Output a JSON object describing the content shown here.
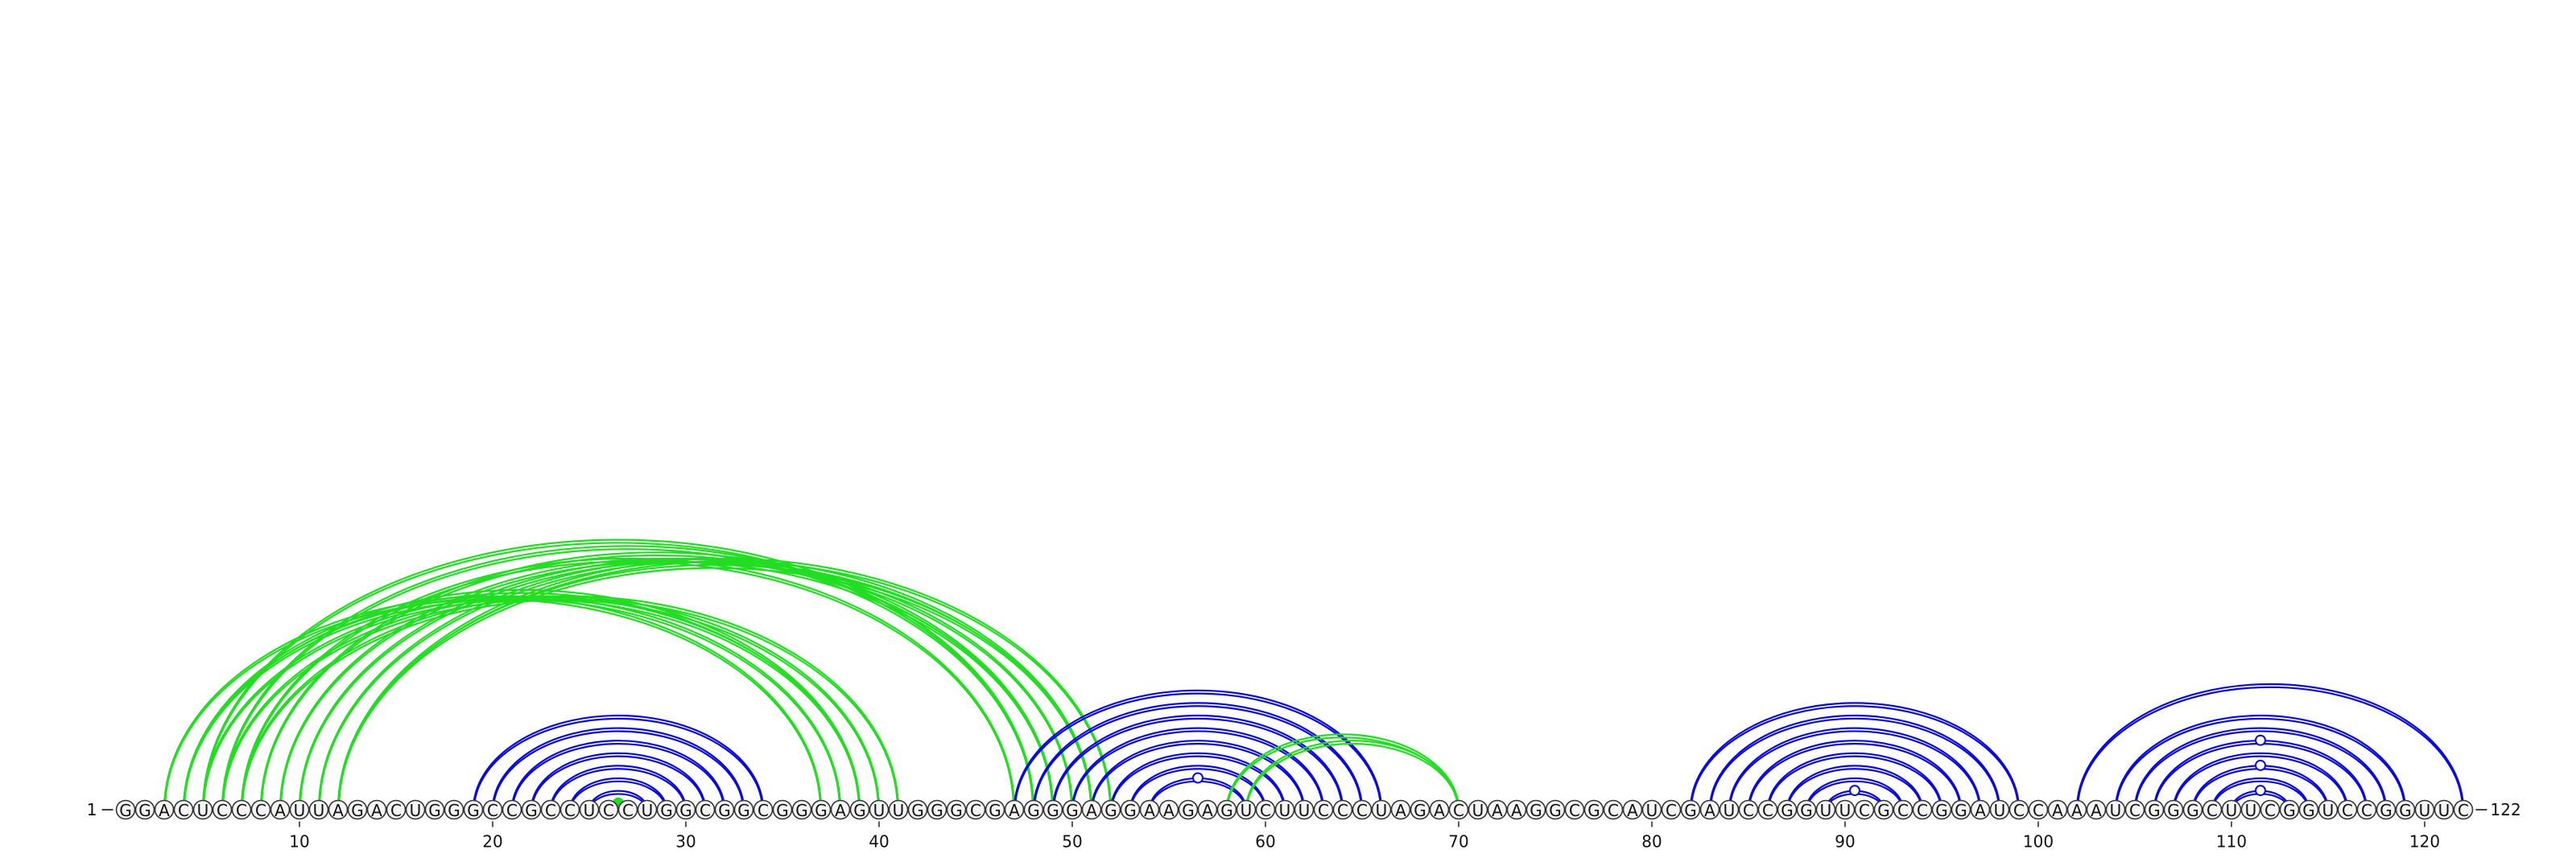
{
  "sequence": "GGACUCCCAUUAGACUGGGCCGCCUCCUGGCGGCGGGAGUUGGGCGAGGGAGGAAGAGUCUUCCCUAGACUAAGGCGCAUCGAUCCGGUUCGCCGGAUCCAAAUCGGGCUUCGGUCCGGUUC",
  "start_label": "1",
  "end_label": "122",
  "ticks": [
    10,
    20,
    30,
    40,
    50,
    60,
    70,
    80,
    90,
    100,
    110,
    120
  ],
  "colors": {
    "blue": "#0a0adc",
    "green": "#22dd22"
  },
  "chart_data": {
    "type": "arc-diagram",
    "title": "",
    "length": 122,
    "arc_groups": [
      {
        "name": "green-upper",
        "color": "green",
        "pairs": [
          [
            3,
            37
          ],
          [
            4,
            38
          ],
          [
            4,
            39
          ],
          [
            5,
            39
          ],
          [
            6,
            40
          ],
          [
            7,
            41
          ],
          [
            7,
            47
          ],
          [
            6,
            48
          ],
          [
            5,
            48
          ],
          [
            8,
            49
          ],
          [
            9,
            49
          ],
          [
            10,
            50
          ],
          [
            11,
            51
          ],
          [
            12,
            51
          ],
          [
            12,
            52
          ]
        ],
        "double": true
      },
      {
        "name": "blue-hairpin-1",
        "color": "blue",
        "pairs": [
          [
            19,
            34
          ],
          [
            20,
            33
          ],
          [
            21,
            32
          ],
          [
            22,
            31
          ],
          [
            23,
            30
          ],
          [
            24,
            29
          ],
          [
            25,
            28
          ]
        ],
        "double": true
      },
      {
        "name": "green-inner-1",
        "color": "green",
        "pairs": [
          [
            26,
            27
          ]
        ],
        "double": false,
        "dot": "filled"
      },
      {
        "name": "blue-hairpin-2",
        "color": "blue",
        "pairs": [
          [
            47,
            66
          ],
          [
            48,
            65
          ],
          [
            49,
            64
          ],
          [
            50,
            63
          ],
          [
            51,
            62
          ],
          [
            52,
            61
          ],
          [
            53,
            60
          ],
          [
            54,
            59
          ]
        ],
        "double": true,
        "dot": "open"
      },
      {
        "name": "green-pseudoknot",
        "color": "green",
        "pairs": [
          [
            58,
            70
          ],
          [
            59,
            70
          ]
        ],
        "double": true
      },
      {
        "name": "blue-hairpin-3",
        "color": "blue",
        "pairs": [
          [
            82,
            99
          ],
          [
            83,
            98
          ],
          [
            84,
            97
          ],
          [
            85,
            96
          ],
          [
            86,
            95
          ],
          [
            87,
            94
          ],
          [
            88,
            93
          ],
          [
            89,
            92
          ]
        ],
        "double": true,
        "dot": "open"
      },
      {
        "name": "blue-hairpin-4",
        "color": "blue",
        "pairs": [
          [
            102,
            122
          ],
          [
            104,
            119
          ],
          [
            105,
            118
          ],
          [
            106,
            117
          ],
          [
            107,
            116
          ],
          [
            108,
            115
          ],
          [
            109,
            114
          ],
          [
            110,
            113
          ]
        ],
        "double": true,
        "dot": "open"
      }
    ]
  }
}
